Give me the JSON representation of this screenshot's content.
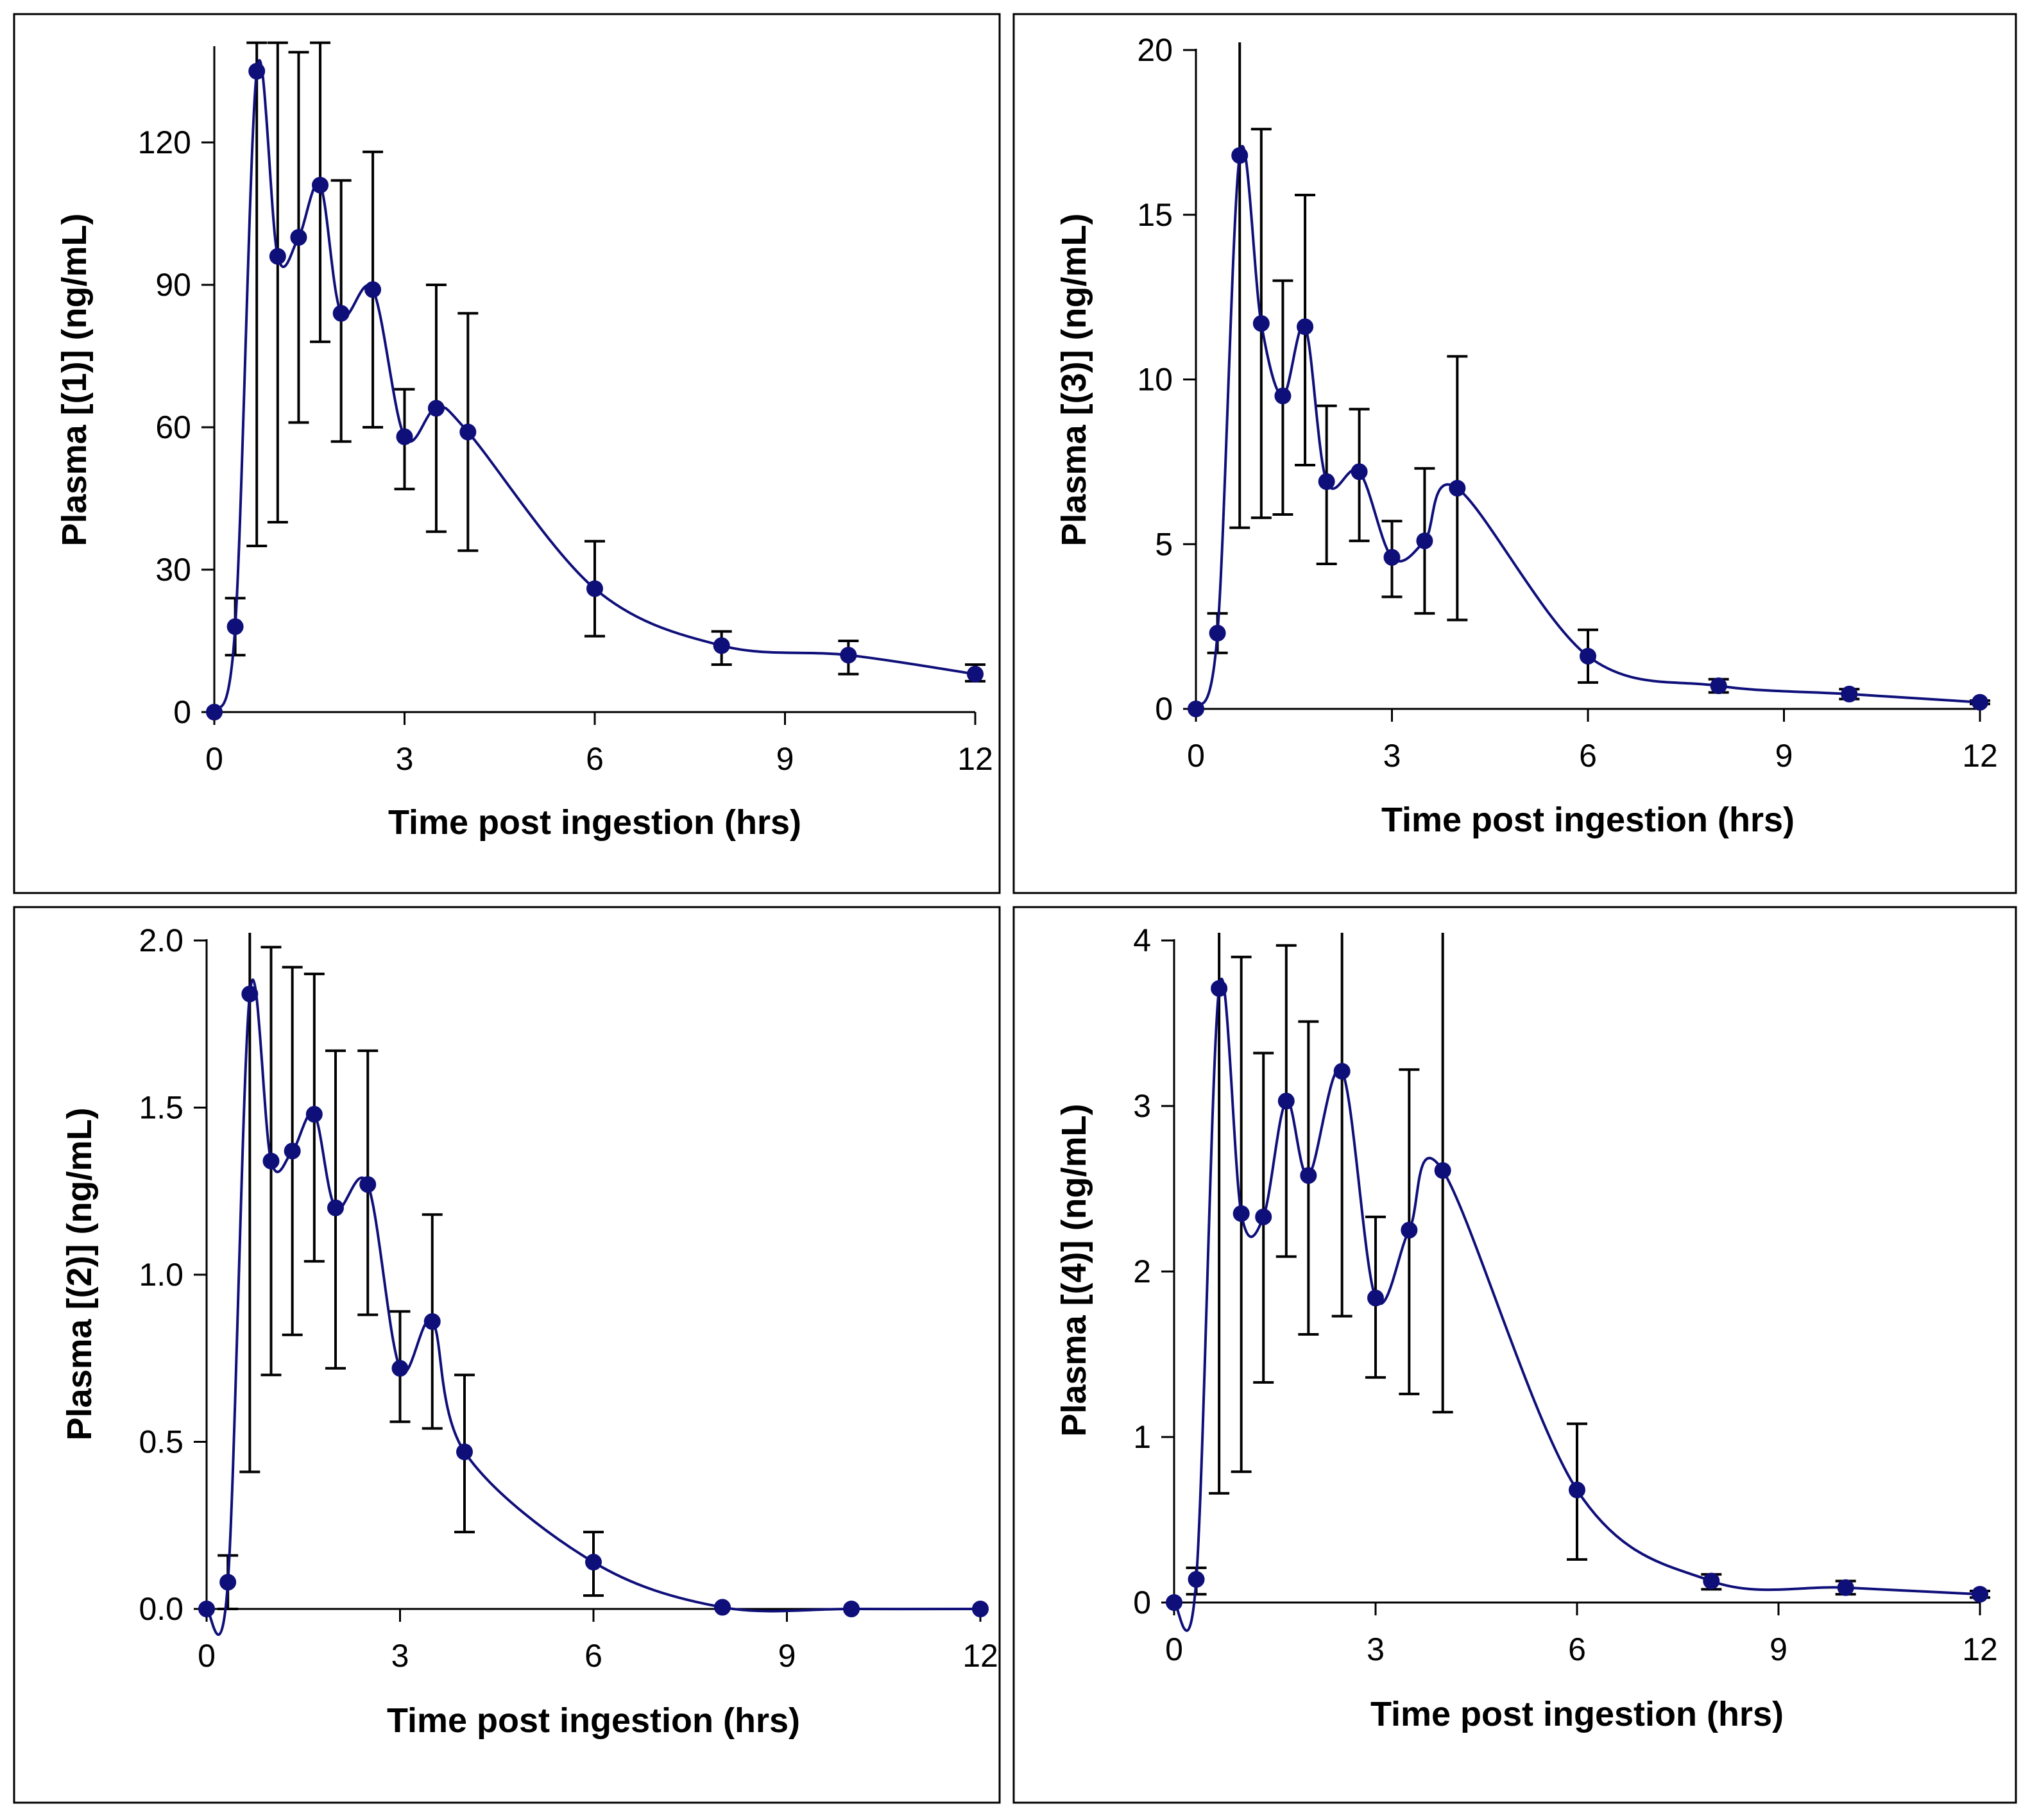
{
  "figure": {
    "panel_count": 4
  },
  "colors": {
    "series": "#0f0f7a",
    "axis": "#000000",
    "error_bar": "#000000",
    "panel_border": "#000000"
  },
  "chart_data": [
    {
      "type": "line",
      "title": "",
      "xlabel": "Time post ingestion (hrs)",
      "ylabel": "Plasma [(1)] (ng/mL)",
      "xlim": [
        0,
        12
      ],
      "ylim": [
        0,
        140
      ],
      "xticks": [
        "0",
        "3",
        "6",
        "9",
        "12"
      ],
      "yticks": [
        "0",
        "30",
        "60",
        "90",
        "120"
      ],
      "x": [
        0,
        0.33,
        0.67,
        1,
        1.33,
        1.67,
        2,
        2.5,
        3,
        3.5,
        4,
        6,
        8,
        10,
        12
      ],
      "values": [
        0,
        18,
        135,
        96,
        100,
        111,
        84,
        89,
        58,
        64,
        59,
        26,
        14,
        12,
        8
      ],
      "err_low": [
        0,
        12,
        35,
        40,
        61,
        78,
        57,
        60,
        47,
        38,
        34,
        16,
        10,
        8,
        6.5
      ],
      "err_high": [
        0,
        24,
        141,
        141,
        139,
        141,
        112,
        118,
        68,
        90,
        84,
        36,
        17,
        15,
        10
      ],
      "grid": false
    },
    {
      "type": "line",
      "title": "",
      "xlabel": "Time post ingestion (hrs)",
      "ylabel": "Plasma [(3)] (ng/mL)",
      "xlim": [
        0,
        12
      ],
      "ylim": [
        0,
        20
      ],
      "xticks": [
        "0",
        "3",
        "6",
        "9",
        "12"
      ],
      "yticks": [
        "0",
        "5",
        "10",
        "15",
        "20"
      ],
      "x": [
        0,
        0.33,
        0.67,
        1,
        1.33,
        1.67,
        2,
        2.5,
        3,
        3.5,
        4,
        6,
        8,
        10,
        12
      ],
      "values": [
        0,
        2.3,
        16.8,
        11.7,
        9.5,
        11.6,
        6.9,
        7.2,
        4.6,
        5.1,
        6.7,
        1.6,
        0.7,
        0.45,
        0.2
      ],
      "err_low": [
        0,
        1.7,
        5.5,
        5.8,
        5.9,
        7.4,
        4.4,
        5.1,
        3.4,
        2.9,
        2.7,
        0.8,
        0.5,
        0.3,
        0.15
      ],
      "err_high": [
        0,
        2.9,
        20.3,
        17.6,
        13,
        15.6,
        9.2,
        9.1,
        5.7,
        7.3,
        10.7,
        2.4,
        0.9,
        0.6,
        0.25
      ],
      "grid": false
    },
    {
      "type": "line",
      "title": "",
      "xlabel": "Time post ingestion (hrs)",
      "ylabel": "Plasma [(2)] (ng/mL)",
      "xlim": [
        0,
        12
      ],
      "ylim": [
        0,
        2.0
      ],
      "xticks": [
        "0",
        "3",
        "6",
        "9",
        "12"
      ],
      "yticks": [
        "0.0",
        "0.5",
        "1.0",
        "1.5",
        "2.0"
      ],
      "x": [
        0,
        0.33,
        0.67,
        1,
        1.33,
        1.67,
        2,
        2.5,
        3,
        3.5,
        4,
        6,
        8,
        10,
        12
      ],
      "values": [
        0,
        0.08,
        1.84,
        1.34,
        1.37,
        1.48,
        1.2,
        1.27,
        0.72,
        0.86,
        0.47,
        0.14,
        0.005,
        0,
        0
      ],
      "err_low": [
        0,
        0,
        0.41,
        0.7,
        0.82,
        1.04,
        0.72,
        0.88,
        0.56,
        0.54,
        0.23,
        0.04,
        0.005,
        0,
        0
      ],
      "err_high": [
        0,
        0.16,
        2.03,
        1.98,
        1.92,
        1.9,
        1.67,
        1.67,
        0.89,
        1.18,
        0.7,
        0.23,
        0.005,
        0,
        0
      ],
      "grid": false
    },
    {
      "type": "line",
      "title": "",
      "xlabel": "Time post ingestion (hrs)",
      "ylabel": "Plasma [(4)] (ng/mL)",
      "xlim": [
        0,
        12
      ],
      "ylim": [
        0,
        4
      ],
      "xticks": [
        "0",
        "3",
        "6",
        "9",
        "12"
      ],
      "yticks": [
        "0",
        "1",
        "2",
        "3",
        "4"
      ],
      "x": [
        0,
        0.33,
        0.67,
        1,
        1.33,
        1.67,
        2,
        2.5,
        3,
        3.5,
        4,
        6,
        8,
        10,
        12
      ],
      "values": [
        0,
        0.14,
        3.71,
        2.35,
        2.33,
        3.03,
        2.58,
        3.21,
        1.84,
        2.25,
        2.61,
        0.68,
        0.13,
        0.09,
        0.05
      ],
      "err_low": [
        0,
        0.05,
        0.66,
        0.79,
        1.33,
        2.09,
        1.62,
        1.73,
        1.36,
        1.26,
        1.15,
        0.26,
        0.08,
        0.05,
        0.03
      ],
      "err_high": [
        0,
        0.21,
        4.1,
        3.9,
        3.32,
        3.97,
        3.51,
        4.1,
        2.33,
        3.22,
        4.1,
        1.08,
        0.17,
        0.13,
        0.07
      ],
      "grid": false
    }
  ]
}
